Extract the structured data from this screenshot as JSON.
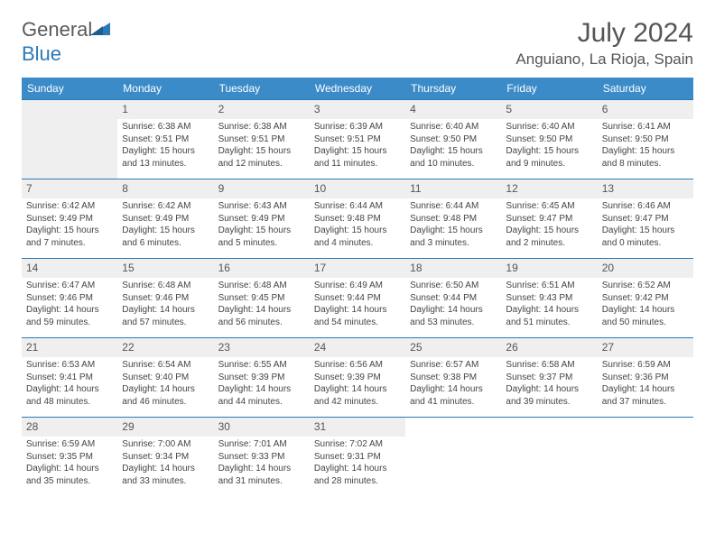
{
  "logo": {
    "text_general": "General",
    "text_blue": "Blue"
  },
  "header": {
    "month_title": "July 2024",
    "location": "Anguiano, La Rioja, Spain"
  },
  "theme": {
    "header_bg": "#3b8bc8",
    "border_color": "#2a7ab9",
    "shade_bg": "#efefef",
    "text_color": "#444",
    "title_color": "#555"
  },
  "day_names": [
    "Sunday",
    "Monday",
    "Tuesday",
    "Wednesday",
    "Thursday",
    "Friday",
    "Saturday"
  ],
  "weeks": [
    [
      null,
      {
        "n": "1",
        "sr": "6:38 AM",
        "ss": "9:51 PM",
        "dl": "15 hours and 13 minutes."
      },
      {
        "n": "2",
        "sr": "6:38 AM",
        "ss": "9:51 PM",
        "dl": "15 hours and 12 minutes."
      },
      {
        "n": "3",
        "sr": "6:39 AM",
        "ss": "9:51 PM",
        "dl": "15 hours and 11 minutes."
      },
      {
        "n": "4",
        "sr": "6:40 AM",
        "ss": "9:50 PM",
        "dl": "15 hours and 10 minutes."
      },
      {
        "n": "5",
        "sr": "6:40 AM",
        "ss": "9:50 PM",
        "dl": "15 hours and 9 minutes."
      },
      {
        "n": "6",
        "sr": "6:41 AM",
        "ss": "9:50 PM",
        "dl": "15 hours and 8 minutes."
      }
    ],
    [
      {
        "n": "7",
        "sr": "6:42 AM",
        "ss": "9:49 PM",
        "dl": "15 hours and 7 minutes."
      },
      {
        "n": "8",
        "sr": "6:42 AM",
        "ss": "9:49 PM",
        "dl": "15 hours and 6 minutes."
      },
      {
        "n": "9",
        "sr": "6:43 AM",
        "ss": "9:49 PM",
        "dl": "15 hours and 5 minutes."
      },
      {
        "n": "10",
        "sr": "6:44 AM",
        "ss": "9:48 PM",
        "dl": "15 hours and 4 minutes."
      },
      {
        "n": "11",
        "sr": "6:44 AM",
        "ss": "9:48 PM",
        "dl": "15 hours and 3 minutes."
      },
      {
        "n": "12",
        "sr": "6:45 AM",
        "ss": "9:47 PM",
        "dl": "15 hours and 2 minutes."
      },
      {
        "n": "13",
        "sr": "6:46 AM",
        "ss": "9:47 PM",
        "dl": "15 hours and 0 minutes."
      }
    ],
    [
      {
        "n": "14",
        "sr": "6:47 AM",
        "ss": "9:46 PM",
        "dl": "14 hours and 59 minutes."
      },
      {
        "n": "15",
        "sr": "6:48 AM",
        "ss": "9:46 PM",
        "dl": "14 hours and 57 minutes."
      },
      {
        "n": "16",
        "sr": "6:48 AM",
        "ss": "9:45 PM",
        "dl": "14 hours and 56 minutes."
      },
      {
        "n": "17",
        "sr": "6:49 AM",
        "ss": "9:44 PM",
        "dl": "14 hours and 54 minutes."
      },
      {
        "n": "18",
        "sr": "6:50 AM",
        "ss": "9:44 PM",
        "dl": "14 hours and 53 minutes."
      },
      {
        "n": "19",
        "sr": "6:51 AM",
        "ss": "9:43 PM",
        "dl": "14 hours and 51 minutes."
      },
      {
        "n": "20",
        "sr": "6:52 AM",
        "ss": "9:42 PM",
        "dl": "14 hours and 50 minutes."
      }
    ],
    [
      {
        "n": "21",
        "sr": "6:53 AM",
        "ss": "9:41 PM",
        "dl": "14 hours and 48 minutes."
      },
      {
        "n": "22",
        "sr": "6:54 AM",
        "ss": "9:40 PM",
        "dl": "14 hours and 46 minutes."
      },
      {
        "n": "23",
        "sr": "6:55 AM",
        "ss": "9:39 PM",
        "dl": "14 hours and 44 minutes."
      },
      {
        "n": "24",
        "sr": "6:56 AM",
        "ss": "9:39 PM",
        "dl": "14 hours and 42 minutes."
      },
      {
        "n": "25",
        "sr": "6:57 AM",
        "ss": "9:38 PM",
        "dl": "14 hours and 41 minutes."
      },
      {
        "n": "26",
        "sr": "6:58 AM",
        "ss": "9:37 PM",
        "dl": "14 hours and 39 minutes."
      },
      {
        "n": "27",
        "sr": "6:59 AM",
        "ss": "9:36 PM",
        "dl": "14 hours and 37 minutes."
      }
    ],
    [
      {
        "n": "28",
        "sr": "6:59 AM",
        "ss": "9:35 PM",
        "dl": "14 hours and 35 minutes."
      },
      {
        "n": "29",
        "sr": "7:00 AM",
        "ss": "9:34 PM",
        "dl": "14 hours and 33 minutes."
      },
      {
        "n": "30",
        "sr": "7:01 AM",
        "ss": "9:33 PM",
        "dl": "14 hours and 31 minutes."
      },
      {
        "n": "31",
        "sr": "7:02 AM",
        "ss": "9:31 PM",
        "dl": "14 hours and 28 minutes."
      },
      null,
      null,
      null
    ]
  ],
  "labels": {
    "sunrise": "Sunrise:",
    "sunset": "Sunset:",
    "daylight": "Daylight:"
  }
}
